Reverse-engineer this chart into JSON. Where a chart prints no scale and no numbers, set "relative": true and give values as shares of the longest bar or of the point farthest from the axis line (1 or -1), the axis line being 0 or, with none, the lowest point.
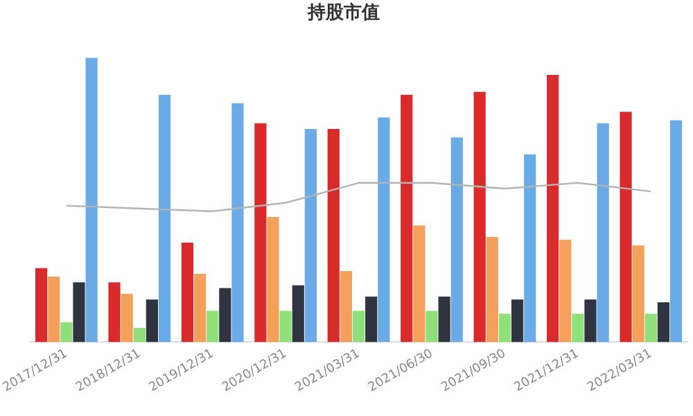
{
  "chart_data": {
    "type": "bar",
    "title": "持股市值",
    "relative": true,
    "grid": false,
    "legend": false,
    "categories": [
      "2017/12/31",
      "2018/12/31",
      "2019/12/31",
      "2020/12/31",
      "2021/03/31",
      "2021/06/30",
      "2021/09/30",
      "2021/12/31",
      "2022/03/31"
    ],
    "series": [
      {
        "color": "#d92b2b",
        "values": [
          0.26,
          0.21,
          0.35,
          0.77,
          0.75,
          0.87,
          0.88,
          0.94,
          0.81
        ]
      },
      {
        "color": "#f5a05a",
        "values": [
          0.23,
          0.17,
          0.24,
          0.44,
          0.25,
          0.41,
          0.37,
          0.36,
          0.34
        ]
      },
      {
        "color": "#8fe07a",
        "values": [
          0.07,
          0.05,
          0.11,
          0.11,
          0.11,
          0.11,
          0.1,
          0.1,
          0.1
        ]
      },
      {
        "color": "#2f3440",
        "values": [
          0.21,
          0.15,
          0.19,
          0.2,
          0.16,
          0.16,
          0.15,
          0.15,
          0.14
        ]
      },
      {
        "color": "#6aaae6",
        "values": [
          1,
          0.87,
          0.84,
          0.75,
          0.79,
          0.72,
          0.66,
          0.77,
          0.78
        ]
      },
      {
        "type": "line",
        "color": "#b4b4b4",
        "marker": "none",
        "values": [
          0.48,
          0.47,
          0.46,
          0.49,
          0.56,
          0.56,
          0.54,
          0.56,
          0.53
        ]
      }
    ]
  }
}
